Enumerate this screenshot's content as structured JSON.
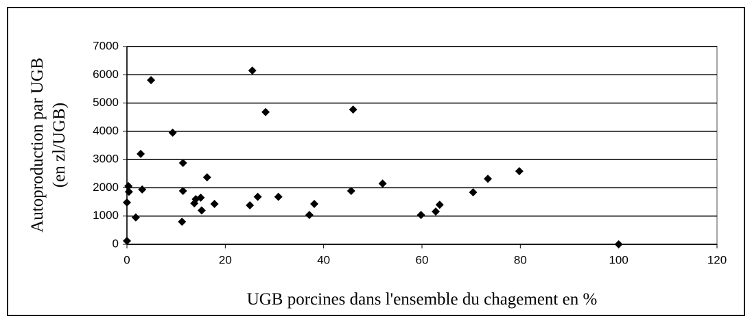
{
  "chart_data": {
    "type": "scatter",
    "x_label": "UGB porcines dans l'ensemble du chagement en %",
    "y_label": [
      "Autoproduction par UGB",
      "(en zl/UGB)"
    ],
    "series": [
      {
        "color": "#000000",
        "x": [
          0,
          0,
          0.3,
          0.4,
          1.8,
          2.8,
          3.1,
          4.9,
          9.3,
          11.2,
          11.4,
          11.4,
          13.7,
          14,
          15,
          15.2,
          16.3,
          17.8,
          25,
          25.5,
          26.6,
          28.2,
          30.8,
          37.1,
          38.1,
          45.6,
          46,
          52,
          59.8,
          62.8,
          63.6,
          70.4,
          73.4,
          79.8,
          100
        ],
        "values": [
          120,
          1480,
          2060,
          1860,
          950,
          3200,
          1940,
          5810,
          3950,
          800,
          2880,
          1890,
          1450,
          1600,
          1650,
          1200,
          2370,
          1430,
          1380,
          6150,
          1680,
          4680,
          1680,
          1040,
          1430,
          1890,
          4770,
          2150,
          1040,
          1160,
          1400,
          1840,
          2320,
          2590,
          0
        ]
      }
    ],
    "xlim": [
      0,
      120
    ],
    "xticks": [
      0,
      20,
      40,
      60,
      80,
      100,
      120
    ],
    "ylim": [
      0,
      7000
    ],
    "yticks": [
      0,
      1000,
      2000,
      3000,
      4000,
      5000,
      6000,
      7000
    ],
    "grid": true
  }
}
